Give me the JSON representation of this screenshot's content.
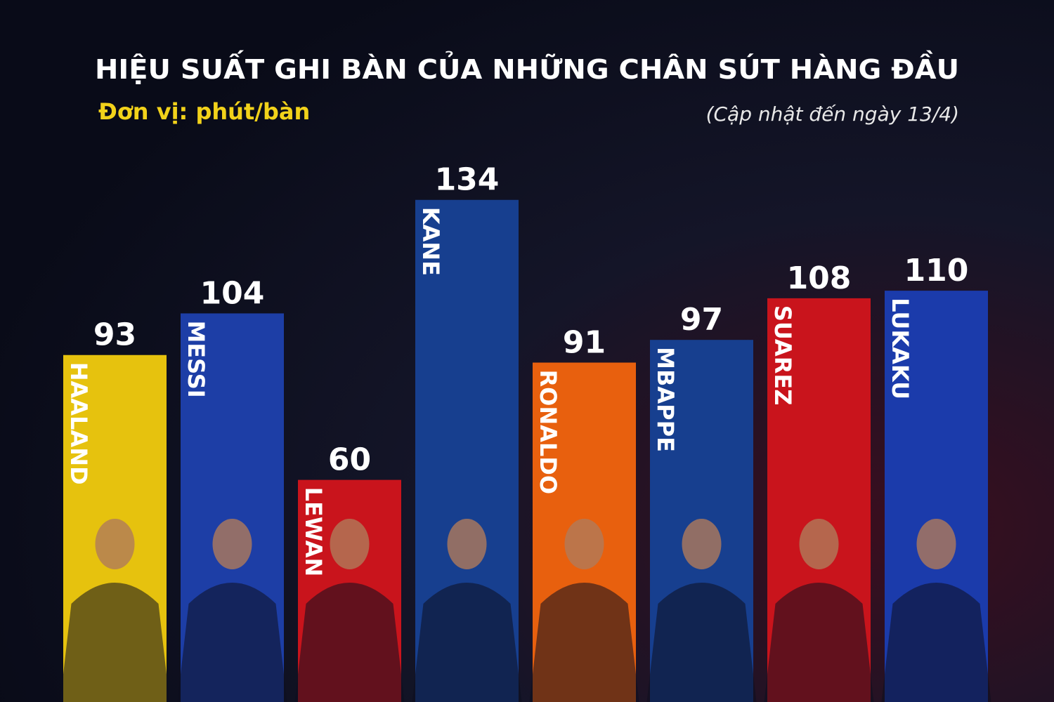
{
  "chart_data": {
    "type": "bar",
    "title": "HIỆU SUẤT GHI BÀN CỦA NHỮNG CHÂN SÚT HÀNG ĐẦU",
    "subtitle": "Đơn vị: phút/bàn",
    "annotation": "(Cập nhật đến ngày 13/4)",
    "categories": [
      "HAALAND",
      "MESSI",
      "LEWAN",
      "KANE",
      "RONALDO",
      "MBAPPE",
      "SUAREZ",
      "LUKAKU"
    ],
    "values": [
      93,
      104,
      60,
      134,
      91,
      97,
      108,
      110
    ],
    "colors": [
      "#e6c20e",
      "#1d3ea6",
      "#c9141c",
      "#173f8f",
      "#e8600e",
      "#173f8f",
      "#c9141c",
      "#1b3bab"
    ]
  }
}
